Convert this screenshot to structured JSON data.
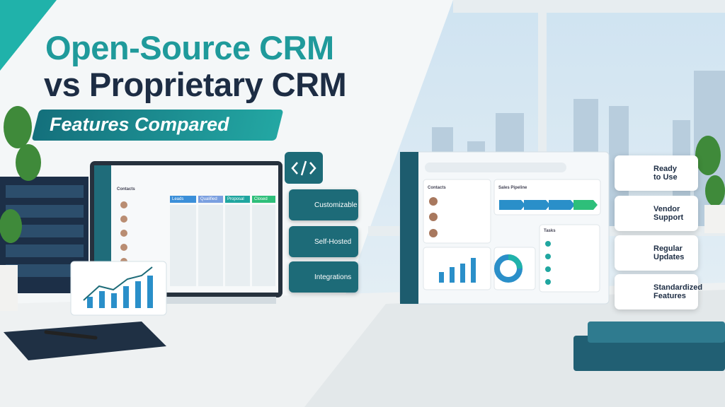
{
  "title": {
    "line1": "Open-Source CRM",
    "line2": "vs Proprietary CRM",
    "subtitle": "Features Compared"
  },
  "open_source": {
    "screen": {
      "heading": "Contacts",
      "columns": [
        "Leads",
        "Qualified",
        "Proposal",
        "Closed"
      ]
    },
    "features": [
      "Customizable",
      "Self-Hosted",
      "Integrations"
    ]
  },
  "proprietary": {
    "screen": {
      "contacts": "Contacts",
      "pipeline": "Sales Pipeline",
      "tasks": "Tasks"
    },
    "features": [
      "Ready to Use",
      "Vendor Support",
      "Regular Updates",
      "Standardized Features"
    ]
  }
}
